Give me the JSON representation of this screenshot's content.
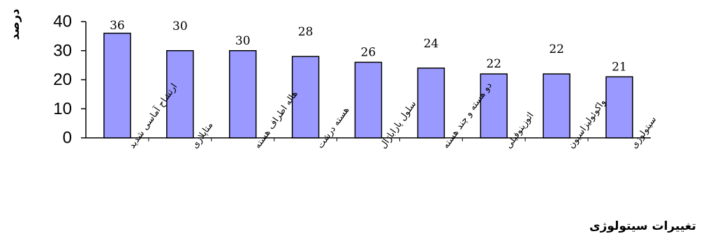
{
  "chart_data": {
    "type": "bar",
    "ylabel": "درصد",
    "xlabel": "تغییرات سیتولوژی",
    "ylim": [
      0,
      40
    ],
    "yticks": [
      0,
      10,
      20,
      30,
      40
    ],
    "grid": false,
    "categories": [
      "ارتشاح آماسی شدید",
      "متاپلازی",
      "هاله اطراف هسته",
      "هسته درشت",
      "سلول پاراباژال",
      "دو هسته و چند هسته",
      "ائوزینوفیلی",
      "واکوئولیزاسیون",
      "سیتولوژی"
    ],
    "values": [
      36,
      30,
      30,
      28,
      26,
      24,
      22,
      22,
      21
    ],
    "colors": {
      "bar_fill": "#9999ff",
      "bar_stroke": "#000000"
    }
  }
}
